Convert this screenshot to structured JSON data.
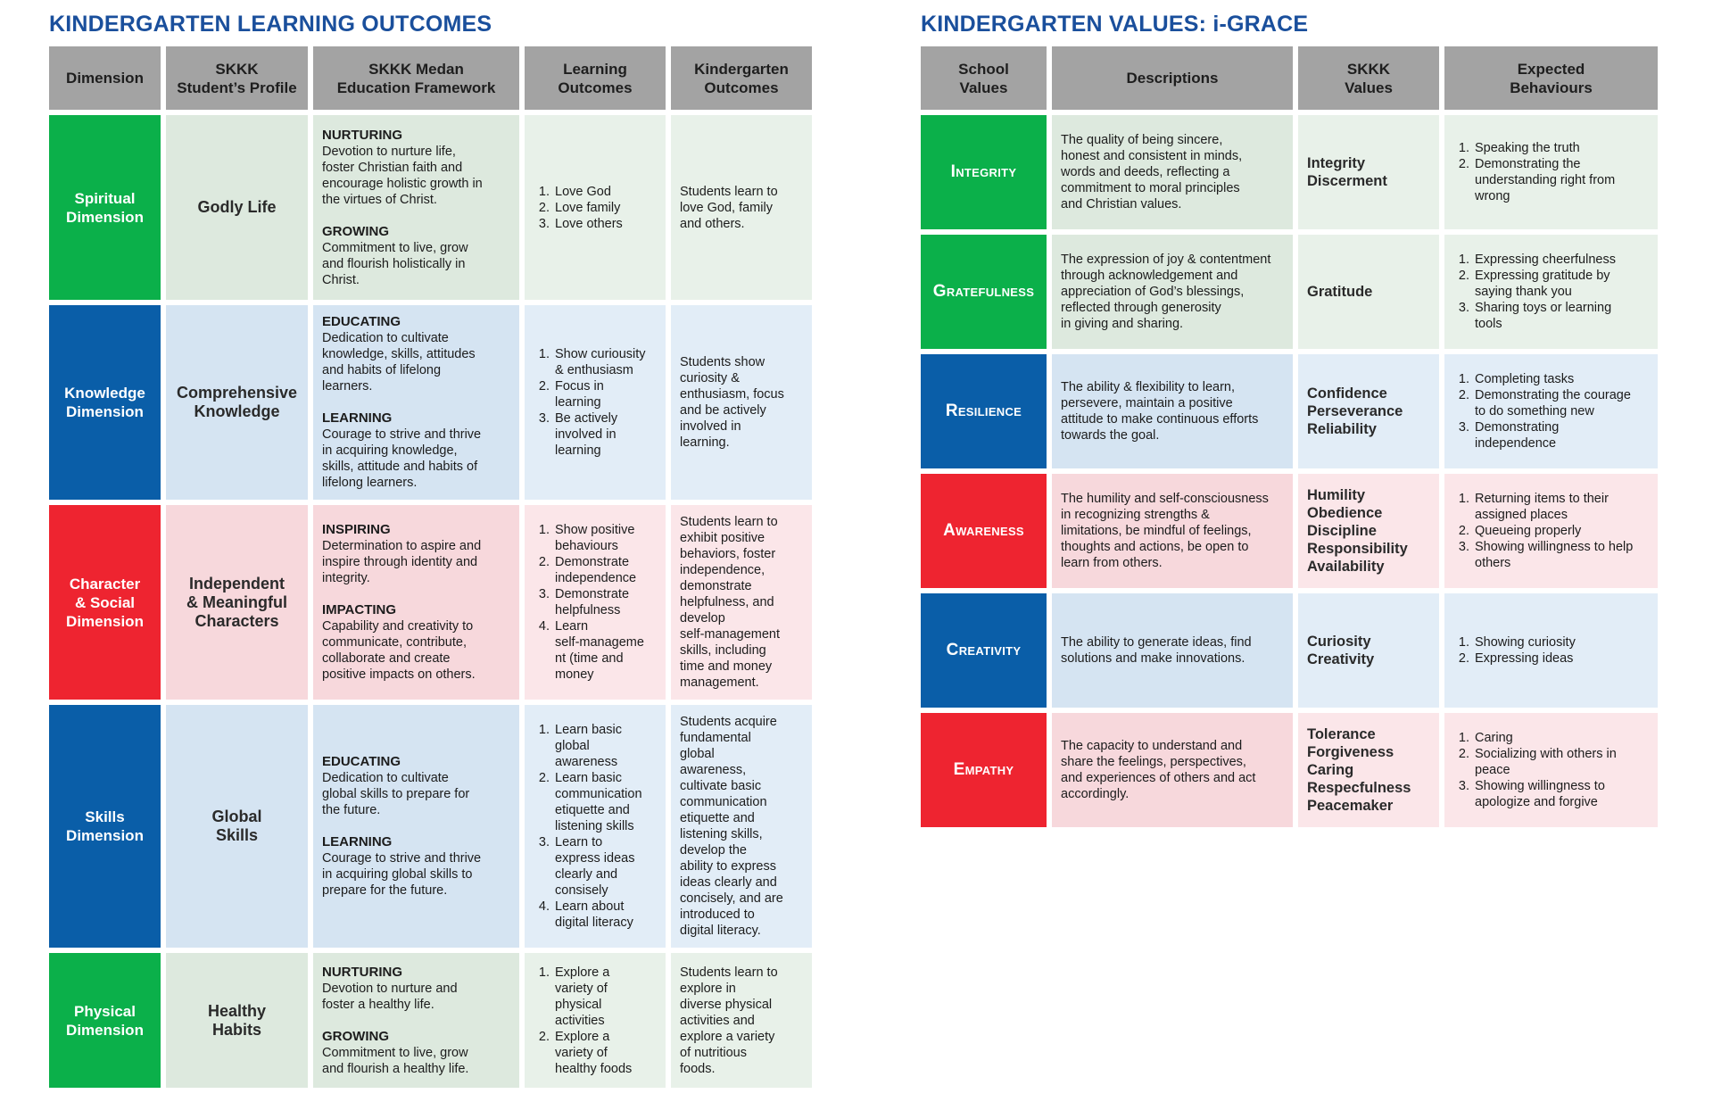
{
  "outcomes": {
    "title": "KINDERGARTEN LEARNING OUTCOMES",
    "headers": [
      "Dimension",
      "SKKK\nStudent’s Profile",
      "SKKK Medan\nEducation Framework",
      "Learning\nOutcomes",
      "Kindergarten\nOutcomes"
    ],
    "rows": [
      {
        "dimension": "Spiritual\nDimension",
        "profile": "Godly Life",
        "framework": [
          {
            "heading": "NURTURING",
            "lines": [
              "Devotion to nurture life,",
              "foster Christian faith and",
              "encourage holistic growth in",
              "the virtues of Christ."
            ]
          },
          {
            "heading": "GROWING",
            "lines": [
              "Commitment to live, grow",
              "and flourish holistically in",
              "Christ."
            ]
          }
        ],
        "learning": [
          [
            "Love God"
          ],
          [
            "Love family"
          ],
          [
            "Love others"
          ]
        ],
        "kinder": [
          "Students learn to",
          "love God, family",
          "and others."
        ]
      },
      {
        "dimension": "Knowledge\nDimension",
        "profile": "Comprehensive\nKnowledge",
        "framework": [
          {
            "heading": "EDUCATING",
            "lines": [
              "Dedication to cultivate",
              "knowledge, skills, attitudes",
              "and habits of lifelong",
              "learners."
            ]
          },
          {
            "heading": "LEARNING",
            "lines": [
              "Courage to strive and thrive",
              "in acquiring knowledge,",
              "skills, attitude and habits of",
              "lifelong learners."
            ]
          }
        ],
        "learning": [
          [
            "Show curiousity",
            "& enthusiasm"
          ],
          [
            "Focus in",
            "learning"
          ],
          [
            "Be actively",
            "involved in",
            "learning"
          ]
        ],
        "kinder": [
          "Students show",
          "curiosity &",
          "enthusiasm, focus",
          "and be actively",
          "involved in",
          "learning."
        ]
      },
      {
        "dimension": "Character\n& Social\nDimension",
        "profile": "Independent\n& Meaningful\nCharacters",
        "framework": [
          {
            "heading": "INSPIRING",
            "lines": [
              "Determination to aspire and",
              "inspire through identity and",
              "integrity."
            ]
          },
          {
            "heading": "IMPACTING",
            "lines": [
              "Capability and creativity to",
              "communicate, contribute,",
              "collaborate and create",
              "positive impacts on others."
            ]
          }
        ],
        "learning": [
          [
            "Show positive",
            "behaviours"
          ],
          [
            "Demonstrate",
            "independence"
          ],
          [
            "Demonstrate",
            "helpfulness"
          ],
          [
            "Learn",
            "self-manageme",
            "nt (time and",
            "money"
          ]
        ],
        "kinder": [
          "Students learn to",
          "exhibit positive",
          "behaviors, foster",
          "independence,",
          "demonstrate",
          "helpfulness, and",
          "develop",
          "self-management",
          "skills, including",
          "time and money",
          "management."
        ]
      },
      {
        "dimension": "Skills\nDimension",
        "profile": "Global\nSkills",
        "framework": [
          {
            "heading": "EDUCATING",
            "lines": [
              "Dedication to cultivate",
              "global skills to prepare for",
              "the future."
            ]
          },
          {
            "heading": "LEARNING",
            "lines": [
              "Courage to strive and thrive",
              "in acquiring global skills to",
              "prepare for the future."
            ]
          }
        ],
        "learning": [
          [
            "Learn basic",
            "global",
            "awareness"
          ],
          [
            "Learn basic",
            "communication",
            "etiquette and",
            "listening skills"
          ],
          [
            "Learn to",
            "express ideas",
            "clearly and",
            "consisely"
          ],
          [
            "Learn about",
            "digital literacy"
          ]
        ],
        "kinder": [
          "Students acquire",
          "fundamental",
          "global",
          "awareness,",
          "cultivate basic",
          "communication",
          "etiquette and",
          "listening skills,",
          "develop the",
          "ability to express",
          "ideas clearly and",
          "concisely, and are",
          "introduced to",
          "digital literacy."
        ]
      },
      {
        "dimension": "Physical\nDimension",
        "profile": "Healthy\nHabits",
        "framework": [
          {
            "heading": "NURTURING",
            "lines": [
              "Devotion to nurture and",
              "foster a healthy life."
            ]
          },
          {
            "heading": "GROWING",
            "lines": [
              "Commitment to live, grow",
              "and flourish a healthy life."
            ]
          }
        ],
        "learning": [
          [
            "Explore a",
            "variety of",
            "physical",
            "activities"
          ],
          [
            "Explore a",
            "variety of",
            "healthy foods"
          ]
        ],
        "kinder": [
          "Students learn to",
          "explore in",
          "diverse physical",
          "activities and",
          "explore a variety",
          "of nutritious",
          "foods."
        ]
      }
    ]
  },
  "values": {
    "title": "KINDERGARTEN VALUES: i-GRACE",
    "headers": [
      "School\nValues",
      "Descriptions",
      "SKKK\nValues",
      "Expected\nBehaviours"
    ],
    "rows": [
      {
        "value": "Integrity",
        "description": [
          "The quality of being sincere,",
          "honest and consistent in minds,",
          "words and deeds, reflecting a",
          "commitment to moral principles",
          "and Christian values."
        ],
        "skkk": [
          "Integrity",
          "Discerment"
        ],
        "behaviours": [
          [
            "Speaking the truth"
          ],
          [
            "Demonstrating the",
            "understanding right from",
            "wrong"
          ]
        ]
      },
      {
        "value": "Gratefulness",
        "description": [
          "The expression of joy & contentment",
          "through acknowledgement and",
          "appreciation of God’s blessings,",
          "reflected through generosity",
          "in giving and sharing."
        ],
        "skkk": [
          "Gratitude"
        ],
        "behaviours": [
          [
            "Expressing cheerfulness"
          ],
          [
            "Expressing gratitude by",
            "saying thank you"
          ],
          [
            "Sharing toys or learning",
            "tools"
          ]
        ]
      },
      {
        "value": "Resilience",
        "description": [
          "The ability & flexibility to learn,",
          "persevere, maintain a positive",
          "attitude to make continuous efforts",
          "towards the goal."
        ],
        "skkk": [
          "Confidence",
          "Perseverance",
          "Reliability"
        ],
        "behaviours": [
          [
            "Completing tasks"
          ],
          [
            "Demonstrating the courage",
            "to do something new"
          ],
          [
            "Demonstrating",
            "independence"
          ]
        ]
      },
      {
        "value": "Awareness",
        "description": [
          "The humility and self-consciousness",
          "in recognizing strengths &",
          "limitations, be mindful of feelings,",
          "thoughts and actions, be open to",
          "learn from others."
        ],
        "skkk": [
          "Humility",
          "Obedience",
          "Discipline",
          "Responsibility",
          "Availability"
        ],
        "behaviours": [
          [
            "Returning items to their",
            "assigned places"
          ],
          [
            "Queueing properly"
          ],
          [
            "Showing willingness to help",
            "others"
          ]
        ]
      },
      {
        "value": "Creativity",
        "description": [
          "The ability to generate ideas, find",
          "solutions and make innovations."
        ],
        "skkk": [
          "Curiosity",
          "Creativity"
        ],
        "behaviours": [
          [
            "Showing curiosity"
          ],
          [
            "Expressing ideas"
          ]
        ]
      },
      {
        "value": "Empathy",
        "description": [
          "The capacity to understand and",
          "share the feelings, perspectives,",
          "and experiences of others and act",
          "accordingly."
        ],
        "skkk": [
          "Tolerance",
          "Forgiveness",
          "Caring",
          "Respecfulness",
          "Peacemaker"
        ],
        "behaviours": [
          [
            "Caring"
          ],
          [
            "Socializing with others in",
            "peace"
          ],
          [
            "Showing willingness to",
            "apologize and forgive"
          ]
        ]
      }
    ]
  },
  "colors": {
    "green": "#0bb04a",
    "blue": "#0a5ea8",
    "red": "#ee2430",
    "header_grey": "#a3a3a3",
    "title_blue": "#1a4f9c"
  }
}
